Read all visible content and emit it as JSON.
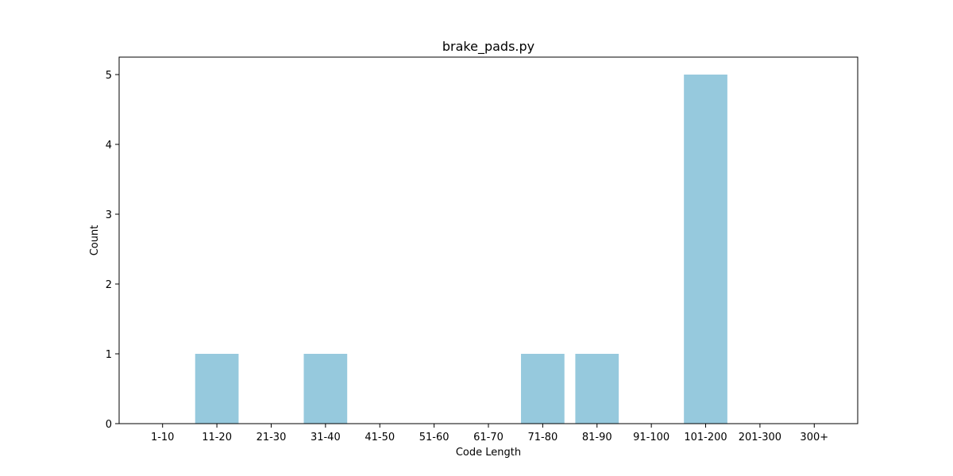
{
  "chart_data": {
    "type": "bar",
    "title": "brake_pads.py",
    "xlabel": "Code Length",
    "ylabel": "Count",
    "categories": [
      "1-10",
      "11-20",
      "21-30",
      "31-40",
      "41-50",
      "51-60",
      "61-70",
      "71-80",
      "81-90",
      "91-100",
      "101-200",
      "201-300",
      "300+"
    ],
    "values": [
      0,
      1,
      0,
      1,
      0,
      0,
      0,
      1,
      1,
      0,
      5,
      0,
      0
    ],
    "ylim": [
      0,
      5.25
    ],
    "yticks": [
      0,
      1,
      2,
      3,
      4,
      5
    ],
    "grid": false,
    "legend": "none",
    "bar_color": "#96c9dd"
  }
}
